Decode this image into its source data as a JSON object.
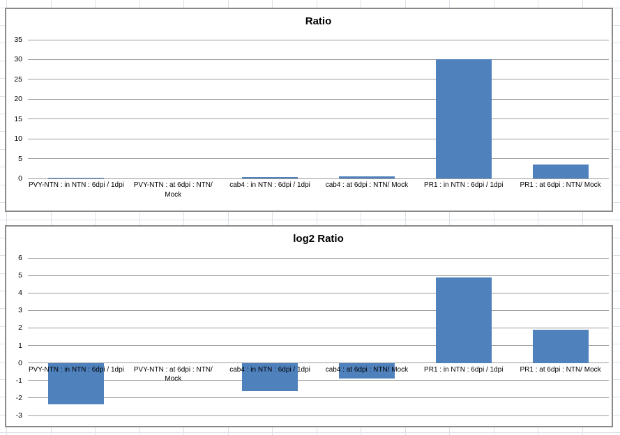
{
  "sheet": {
    "background_color": "#ffffff",
    "gridline_color": "#dce1e8"
  },
  "style": {
    "bar_color": "#4F81BD",
    "chart_gridline_color": "#9a9a9a",
    "chart_border_color": "#8a8a8a",
    "text_color": "#000000"
  },
  "chart_data": [
    {
      "type": "bar",
      "title": "Ratio",
      "categories": [
        "PVY-NTN : in NTN : 6dpi / 1dpi",
        "PVY-NTN : at 6dpi : NTN/ Mock",
        "cab4 : in NTN : 6dpi / 1dpi",
        "cab4 : at 6dpi : NTN/ Mock",
        "PR1 : in NTN : 6dpi / 1dpi",
        "PR1 : at 6dpi : NTN/ Mock"
      ],
      "values": [
        0.2,
        0,
        0.3,
        0.6,
        30,
        3.6
      ],
      "xlabel": "",
      "ylabel": "",
      "ylim": [
        0,
        35
      ],
      "yticks": [
        0,
        5,
        10,
        15,
        20,
        25,
        30,
        35
      ],
      "grid": true,
      "legend": "none",
      "bar_color": "#4F81BD"
    },
    {
      "type": "bar",
      "title": "log2 Ratio",
      "categories": [
        "PVY-NTN : in NTN : 6dpi / 1dpi",
        "PVY-NTN : at 6dpi : NTN/ Mock",
        "cab4 : in NTN : 6dpi / 1dpi",
        "cab4 : at 6dpi : NTN/ Mock",
        "PR1 : in NTN : 6dpi / 1dpi",
        "PR1 : at 6dpi : NTN/ Mock"
      ],
      "values": [
        -2.35,
        0,
        -1.6,
        -0.9,
        4.9,
        1.9
      ],
      "xlabel": "",
      "ylabel": "",
      "ylim": [
        -3,
        6
      ],
      "yticks": [
        -3,
        -2,
        -1,
        0,
        1,
        2,
        3,
        4,
        5,
        6
      ],
      "grid": true,
      "legend": "none",
      "bar_color": "#4F81BD"
    }
  ]
}
